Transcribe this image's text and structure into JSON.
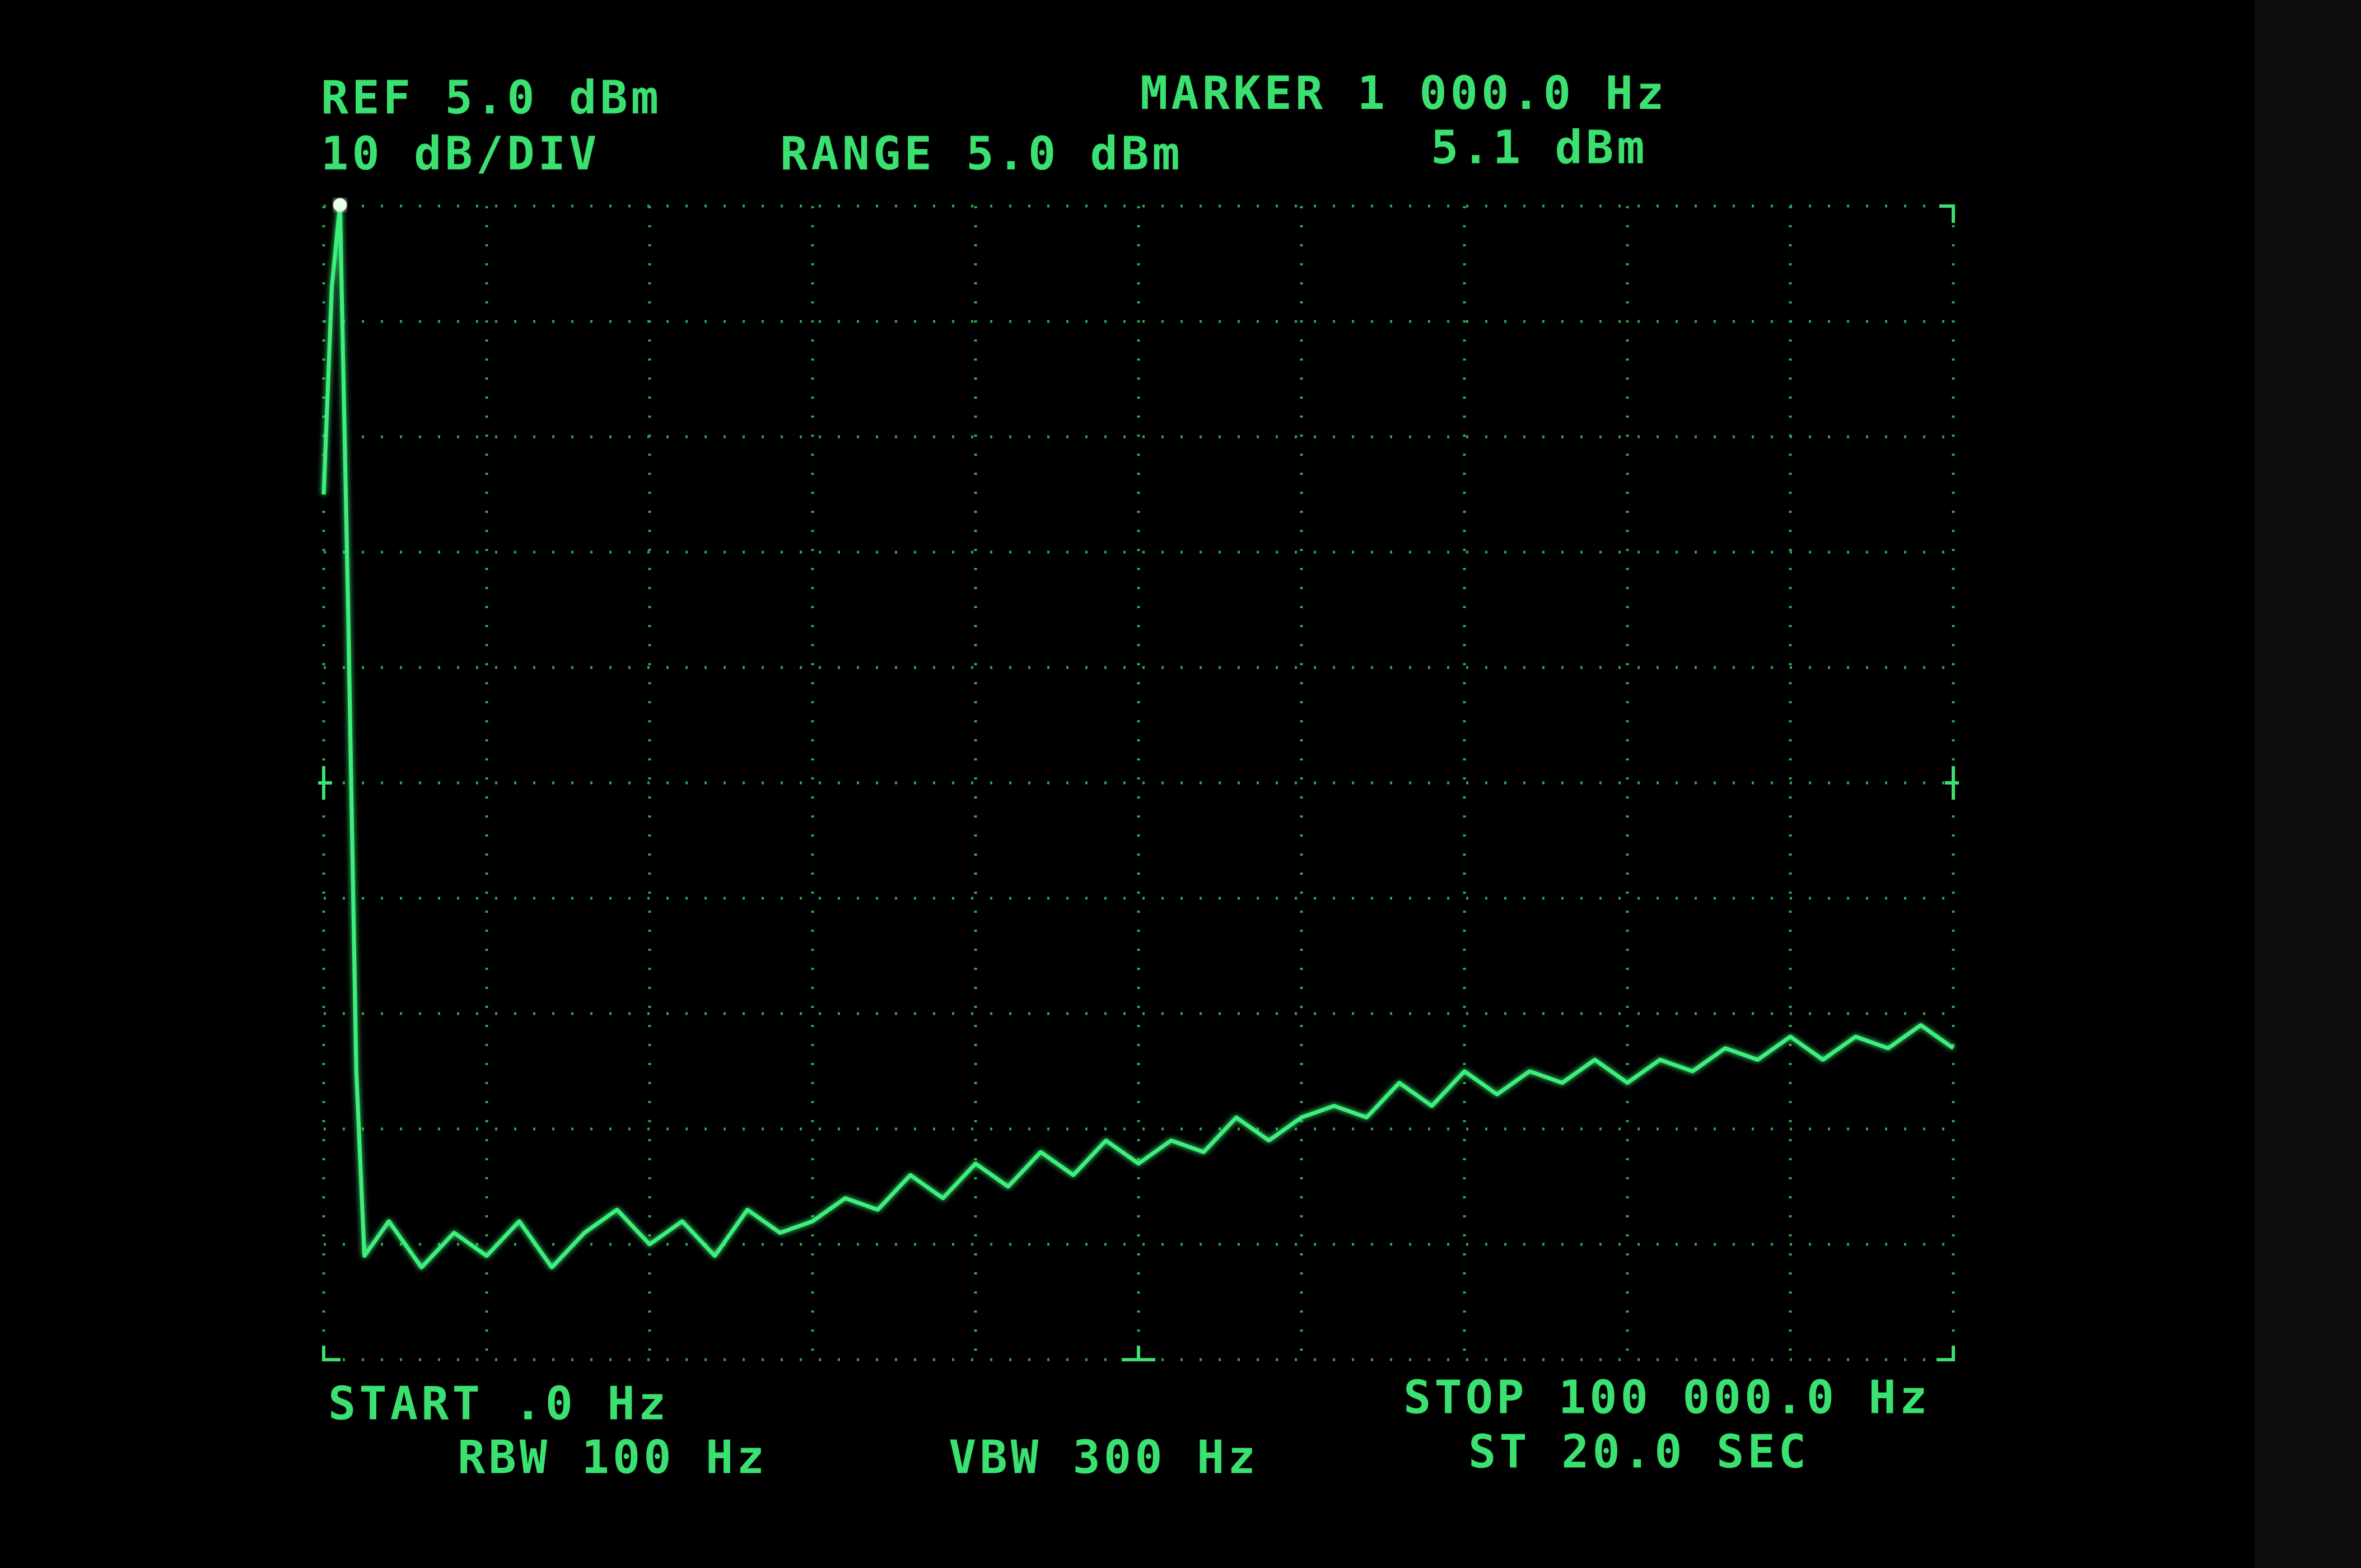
{
  "chart_data": {
    "type": "line",
    "annotations": {
      "ref": "REF 5.0 dBm",
      "scale": "10 dB/DIV",
      "range": "RANGE 5.0 dBm",
      "marker_freq": "MARKER 1 000.0 Hz",
      "marker_level": "5.1 dBm",
      "start": "START .0 Hz",
      "stop": "STOP 100 000.0 Hz",
      "rbw": "RBW 100 Hz",
      "vbw": "VBW 300 Hz",
      "sweep": "ST 20.0 SEC"
    },
    "x": [
      0,
      500,
      1000,
      1500,
      2000,
      2500,
      4000,
      6000,
      8000,
      10000,
      12000,
      14000,
      16000,
      18000,
      20000,
      22000,
      24000,
      26000,
      28000,
      30000,
      32000,
      34000,
      36000,
      38000,
      40000,
      42000,
      44000,
      46000,
      48000,
      50000,
      52000,
      54000,
      56000,
      58000,
      60000,
      62000,
      64000,
      66000,
      68000,
      70000,
      72000,
      74000,
      76000,
      78000,
      80000,
      82000,
      84000,
      86000,
      88000,
      90000,
      92000,
      94000,
      96000,
      98000,
      100000
    ],
    "series": [
      {
        "color": "#3df07c",
        "values": [
          -20,
          -2,
          5.1,
          -30,
          -70,
          -86,
          -83,
          -87,
          -84,
          -86,
          -83,
          -87,
          -84,
          -82,
          -85,
          -83,
          -86,
          -82,
          -84,
          -83,
          -81,
          -82,
          -79,
          -81,
          -78,
          -80,
          -77,
          -79,
          -76,
          -78,
          -76,
          -77,
          -74,
          -76,
          -74,
          -73,
          -74,
          -71,
          -73,
          -70,
          -72,
          -70,
          -71,
          -69,
          -71,
          -69,
          -70,
          -68,
          -69,
          -67,
          -69,
          -67,
          -68,
          -66,
          -68
        ]
      }
    ],
    "marker": {
      "x": 1000,
      "value": 5.1
    },
    "xlim": [
      0,
      100000
    ],
    "ylim": [
      -95,
      5
    ]
  }
}
